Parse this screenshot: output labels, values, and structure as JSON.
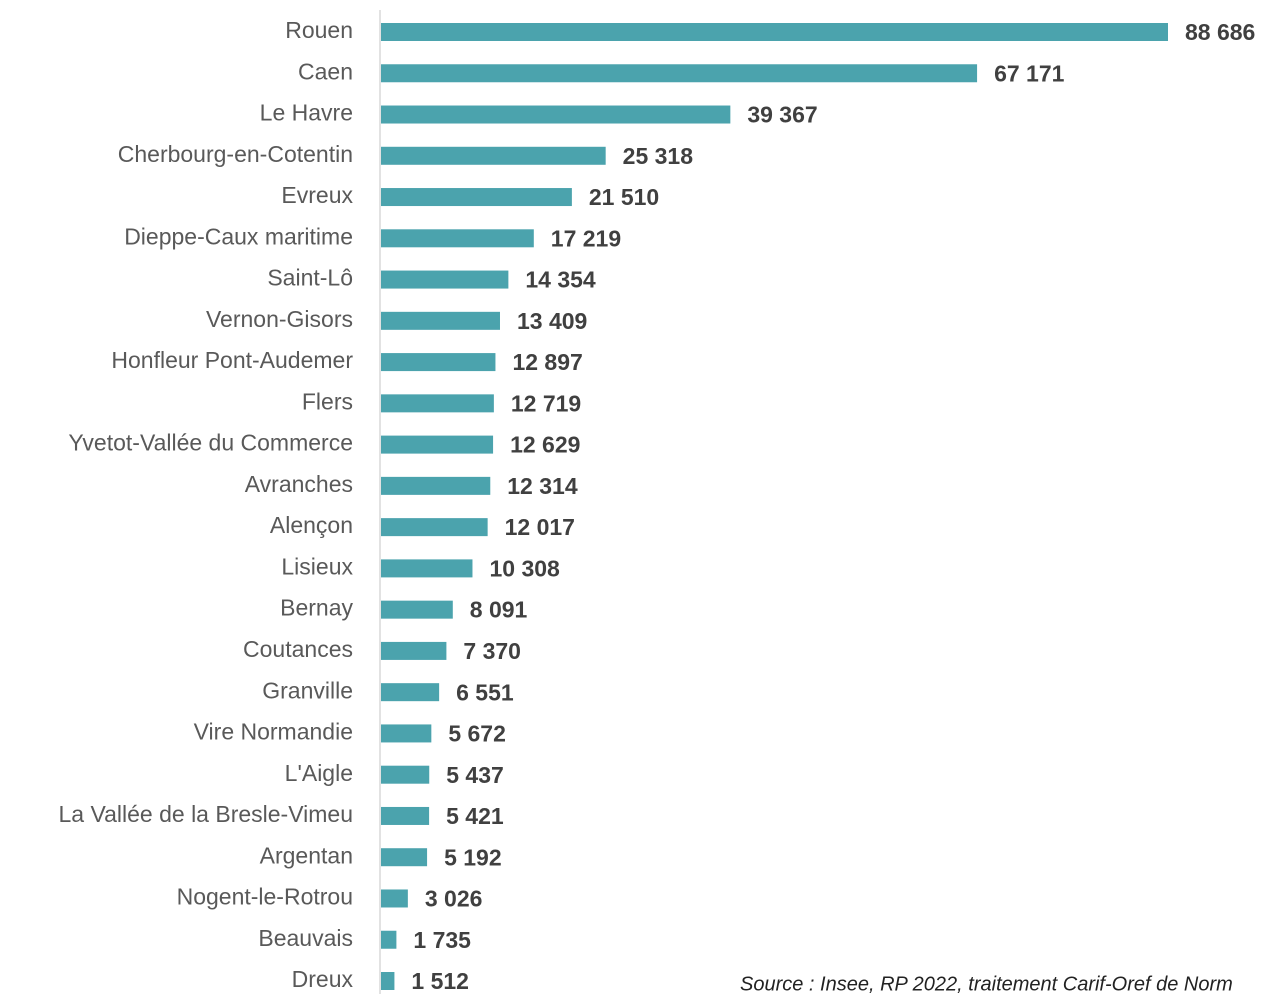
{
  "chart_data": {
    "type": "hbar",
    "categories": [
      "Rouen",
      "Caen",
      "Le Havre",
      "Cherbourg-en-Cotentin",
      "Evreux",
      "Dieppe-Caux maritime",
      "Saint-Lô",
      "Vernon-Gisors",
      "Honfleur Pont-Audemer",
      "Flers",
      "Yvetot-Vallée du Commerce",
      "Avranches",
      "Alençon",
      "Lisieux",
      "Bernay",
      "Coutances",
      "Granville",
      "Vire Normandie",
      "L'Aigle",
      "La Vallée de la Bresle-Vimeu",
      "Argentan",
      "Nogent-le-Rotrou",
      "Beauvais",
      "Dreux"
    ],
    "values": [
      88686,
      67171,
      39367,
      25318,
      21510,
      17219,
      14354,
      13409,
      12897,
      12719,
      12629,
      12314,
      12017,
      10308,
      8091,
      7370,
      6551,
      5672,
      5437,
      5421,
      5192,
      3026,
      1735,
      1512
    ],
    "value_labels": [
      "88 686",
      "67 171",
      "39 367",
      "25 318",
      "21 510",
      "17 219",
      "14 354",
      "13 409",
      "12 897",
      "12 719",
      "12 629",
      "12 314",
      "12 017",
      "10 308",
      "8 091",
      "7 370",
      "6 551",
      "5 672",
      "5 437",
      "5 421",
      "5 192",
      "3 026",
      "1 735",
      "1 512"
    ],
    "color": "#4ba3ad",
    "source": "Source : Insee, RP 2022, traitement Carif-Oref de Norm"
  }
}
